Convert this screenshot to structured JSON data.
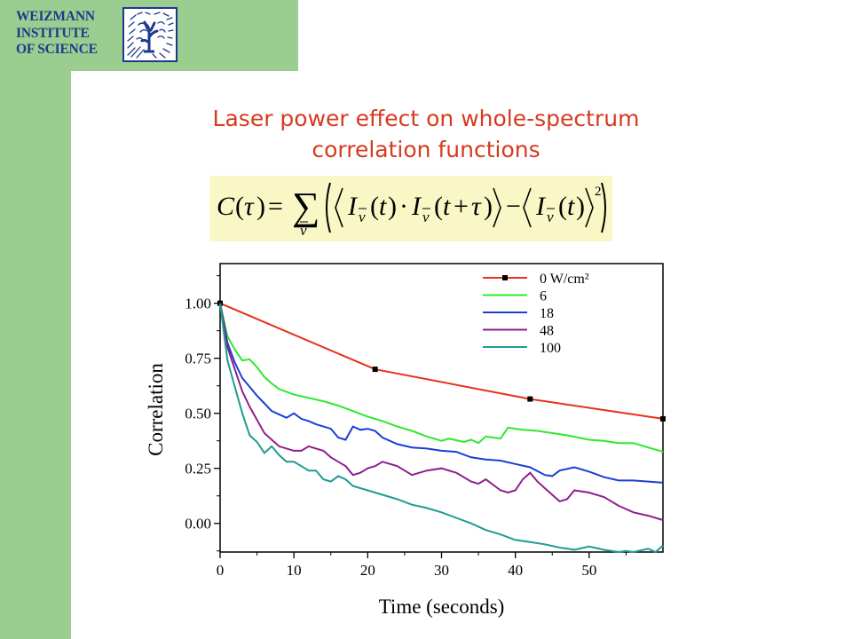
{
  "logo": {
    "line1": "WEIZMANN",
    "line2": "INSTITUTE",
    "line3": "OF SCIENCE",
    "icon": "weizmann-emblem-icon",
    "color": "#1d3a8c"
  },
  "slide": {
    "title_line1": "Laser power effect on whole-spectrum",
    "title_line2": "correlation functions",
    "title_color": "#d63a1f",
    "background_accent": "#9acd8f"
  },
  "formula": {
    "text": "C(τ) = Σ_ν ( ⟨I_ν(t)·I_ν(t+τ)⟩ − ⟨I_ν(t)⟩² )",
    "highlight_color": "#f9f7c6"
  },
  "chart_data": {
    "type": "line",
    "xlabel": "Time (seconds)",
    "ylabel": "Correlation",
    "xlim": [
      0,
      60
    ],
    "ylim": [
      -0.13,
      1.18
    ],
    "xticks": [
      0,
      10,
      20,
      30,
      40,
      50
    ],
    "yticks": [
      0.0,
      0.25,
      0.5,
      0.75,
      1.0
    ],
    "ytick_labels": [
      "0.00",
      "0.25",
      "0.50",
      "0.75",
      "1.00"
    ],
    "legend_position": "top-right",
    "series": [
      {
        "name": "0 W/cm²",
        "color": "#e8301c",
        "markers": true,
        "x": [
          0,
          21,
          42,
          60
        ],
        "y": [
          1.0,
          0.7,
          0.565,
          0.475
        ]
      },
      {
        "name": "6",
        "color": "#2ee82e",
        "markers": false,
        "x": [
          0,
          1,
          2,
          3,
          4,
          5,
          6,
          7,
          8,
          10,
          12,
          14,
          16,
          18,
          20,
          22,
          24,
          26,
          28,
          30,
          31,
          33,
          34,
          35,
          36,
          38,
          39,
          40,
          41,
          43,
          45,
          47,
          50,
          52,
          54,
          56,
          58,
          60
        ],
        "y": [
          1.0,
          0.85,
          0.79,
          0.74,
          0.745,
          0.71,
          0.665,
          0.635,
          0.61,
          0.585,
          0.57,
          0.555,
          0.535,
          0.51,
          0.485,
          0.465,
          0.44,
          0.42,
          0.395,
          0.375,
          0.385,
          0.37,
          0.38,
          0.365,
          0.395,
          0.385,
          0.435,
          0.43,
          0.425,
          0.42,
          0.41,
          0.4,
          0.38,
          0.375,
          0.365,
          0.365,
          0.345,
          0.325
        ]
      },
      {
        "name": "18",
        "color": "#1a3ed6",
        "markers": false,
        "x": [
          0,
          1,
          2,
          3,
          4,
          5,
          6,
          7,
          8,
          9,
          10,
          11,
          12,
          13,
          15,
          16,
          17,
          18,
          19,
          20,
          21,
          22,
          24,
          26,
          28,
          30,
          32,
          34,
          36,
          38,
          40,
          42,
          44,
          45,
          46,
          48,
          50,
          52,
          54,
          56,
          58,
          60
        ],
        "y": [
          1.0,
          0.82,
          0.73,
          0.66,
          0.62,
          0.58,
          0.545,
          0.51,
          0.495,
          0.48,
          0.5,
          0.475,
          0.465,
          0.45,
          0.43,
          0.39,
          0.38,
          0.44,
          0.425,
          0.43,
          0.42,
          0.39,
          0.36,
          0.345,
          0.34,
          0.33,
          0.325,
          0.3,
          0.29,
          0.285,
          0.27,
          0.255,
          0.22,
          0.215,
          0.24,
          0.255,
          0.235,
          0.21,
          0.195,
          0.195,
          0.19,
          0.185
        ]
      },
      {
        "name": "48",
        "color": "#8e1f8c",
        "markers": false,
        "x": [
          0,
          1,
          2,
          3,
          4,
          5,
          6,
          7,
          8,
          10,
          11,
          12,
          13,
          14,
          15,
          16,
          17,
          18,
          19,
          20,
          21,
          22,
          24,
          26,
          28,
          30,
          32,
          34,
          35,
          36,
          38,
          39,
          40,
          41,
          42,
          43,
          44,
          46,
          47,
          48,
          50,
          52,
          54,
          56,
          58,
          60
        ],
        "y": [
          1.0,
          0.8,
          0.7,
          0.6,
          0.53,
          0.47,
          0.41,
          0.38,
          0.35,
          0.33,
          0.33,
          0.35,
          0.34,
          0.33,
          0.3,
          0.28,
          0.26,
          0.22,
          0.23,
          0.25,
          0.26,
          0.28,
          0.26,
          0.22,
          0.24,
          0.25,
          0.23,
          0.19,
          0.18,
          0.2,
          0.15,
          0.14,
          0.15,
          0.2,
          0.23,
          0.19,
          0.16,
          0.1,
          0.11,
          0.15,
          0.14,
          0.12,
          0.08,
          0.05,
          0.035,
          0.015
        ]
      },
      {
        "name": "100",
        "color": "#1f9b93",
        "markers": false,
        "x": [
          0,
          1,
          2,
          3,
          4,
          5,
          6,
          7,
          8,
          9,
          10,
          11,
          12,
          13,
          14,
          15,
          16,
          17,
          18,
          20,
          22,
          24,
          26,
          28,
          30,
          32,
          34,
          36,
          38,
          40,
          42,
          44,
          46,
          48,
          50,
          52,
          54,
          55,
          56,
          58,
          59,
          60
        ],
        "y": [
          1.0,
          0.74,
          0.62,
          0.5,
          0.4,
          0.37,
          0.32,
          0.35,
          0.31,
          0.28,
          0.28,
          0.26,
          0.24,
          0.24,
          0.2,
          0.19,
          0.215,
          0.2,
          0.17,
          0.15,
          0.13,
          0.11,
          0.085,
          0.07,
          0.05,
          0.025,
          0.0,
          -0.03,
          -0.05,
          -0.075,
          -0.085,
          -0.095,
          -0.11,
          -0.12,
          -0.105,
          -0.12,
          -0.13,
          -0.125,
          -0.13,
          -0.115,
          -0.13,
          -0.1
        ]
      }
    ]
  }
}
